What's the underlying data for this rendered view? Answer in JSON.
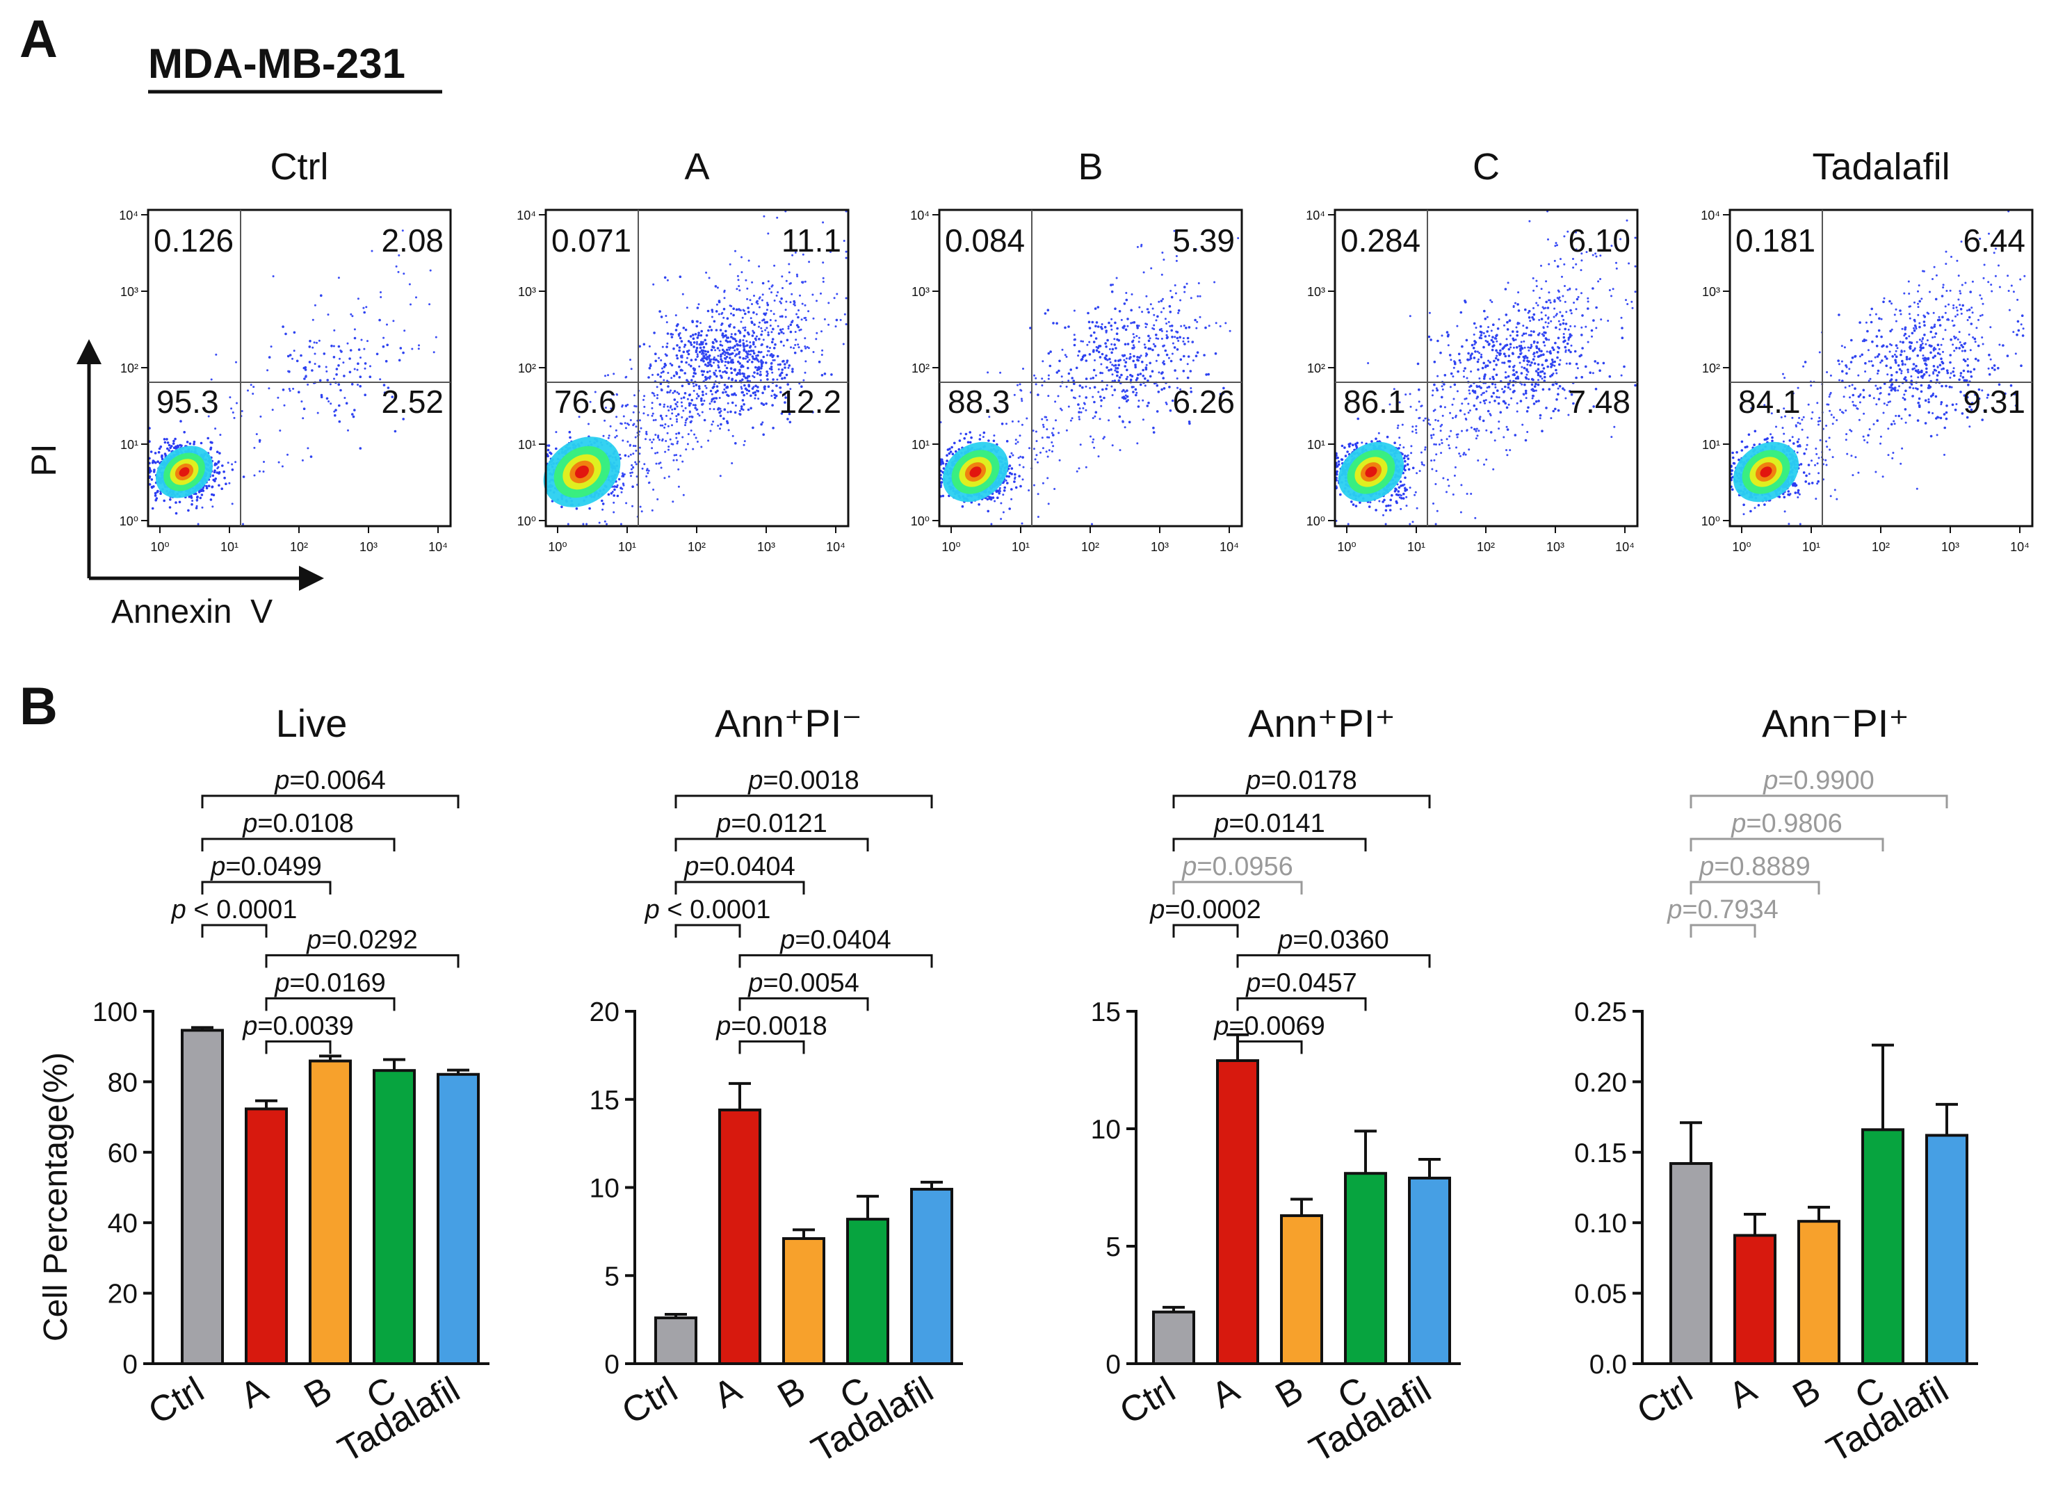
{
  "panel_a": {
    "label": "A",
    "cell_line": "MDA-MB-231",
    "ylabel": "PI",
    "xlabel": "Annexin  V",
    "tick_labels": [
      "10⁰",
      "10¹",
      "10²",
      "10³",
      "10⁴"
    ],
    "plots": [
      {
        "title": "Ctrl",
        "quadrants": {
          "upper_left": "0.126",
          "upper_right": "2.08",
          "lower_left": "95.3",
          "lower_right": "2.52"
        }
      },
      {
        "title": "A",
        "quadrants": {
          "upper_left": "0.071",
          "upper_right": "11.1",
          "lower_left": "76.6",
          "lower_right": "12.2"
        }
      },
      {
        "title": "B",
        "quadrants": {
          "upper_left": "0.084",
          "upper_right": "5.39",
          "lower_left": "88.3",
          "lower_right": "6.26"
        }
      },
      {
        "title": "C",
        "quadrants": {
          "upper_left": "0.284",
          "upper_right": "6.10",
          "lower_left": "86.1",
          "lower_right": "7.48"
        }
      },
      {
        "title": "Tadalafil",
        "quadrants": {
          "upper_left": "0.181",
          "upper_right": "6.44",
          "lower_left": "84.1",
          "lower_right": "9.31"
        }
      }
    ]
  },
  "panel_b": {
    "label": "B",
    "ylabel": "Cell Percentage(%)"
  },
  "colors": {
    "Ctrl": "#a3a3a8",
    "A": "#d7190e",
    "B": "#f7a12c",
    "C": "#07a43f",
    "Tadalafil": "#469fe4",
    "significant": "#111111",
    "not_significant": "#9a9a9a"
  },
  "chart_data": [
    {
      "type": "bar",
      "title": "Live",
      "categories": [
        "Ctrl",
        "A",
        "B",
        "C",
        "Tadalafil"
      ],
      "values": [
        94.6,
        72.3,
        85.9,
        83.2,
        82.1
      ],
      "errors": [
        0.8,
        2.3,
        1.4,
        3.1,
        1.2
      ],
      "ylim": [
        0,
        100
      ],
      "yticks": [
        "0",
        "20",
        "40",
        "60",
        "80",
        "100"
      ],
      "comparisons": [
        {
          "from": 0,
          "to": 4,
          "p": "=0.0064",
          "significant": true
        },
        {
          "from": 0,
          "to": 3,
          "p": "=0.0108",
          "significant": true
        },
        {
          "from": 0,
          "to": 2,
          "p": "=0.0499",
          "significant": true
        },
        {
          "from": 0,
          "to": 1,
          "p": " < 0.0001",
          "significant": true
        },
        {
          "from": 1,
          "to": 4,
          "p": "=0.0292",
          "significant": true
        },
        {
          "from": 1,
          "to": 3,
          "p": "=0.0169",
          "significant": true
        },
        {
          "from": 1,
          "to": 2,
          "p": "=0.0039",
          "significant": true
        }
      ]
    },
    {
      "type": "bar",
      "title": "Ann⁺PI⁻",
      "categories": [
        "Ctrl",
        "A",
        "B",
        "C",
        "Tadalafil"
      ],
      "values": [
        2.6,
        14.4,
        7.1,
        8.2,
        9.9
      ],
      "errors": [
        0.2,
        1.5,
        0.5,
        1.3,
        0.4
      ],
      "ylim": [
        0,
        20
      ],
      "yticks": [
        "0",
        "5",
        "10",
        "15",
        "20"
      ],
      "comparisons": [
        {
          "from": 0,
          "to": 4,
          "p": "=0.0018",
          "significant": true
        },
        {
          "from": 0,
          "to": 3,
          "p": "=0.0121",
          "significant": true
        },
        {
          "from": 0,
          "to": 2,
          "p": "=0.0404",
          "significant": true
        },
        {
          "from": 0,
          "to": 1,
          "p": " < 0.0001",
          "significant": true
        },
        {
          "from": 1,
          "to": 4,
          "p": "=0.0404",
          "significant": true
        },
        {
          "from": 1,
          "to": 3,
          "p": "=0.0054",
          "significant": true
        },
        {
          "from": 1,
          "to": 2,
          "p": "=0.0018",
          "significant": true
        }
      ]
    },
    {
      "type": "bar",
      "title": "Ann⁺PI⁺",
      "categories": [
        "Ctrl",
        "A",
        "B",
        "C",
        "Tadalafil"
      ],
      "values": [
        2.2,
        12.9,
        6.3,
        8.1,
        7.9
      ],
      "errors": [
        0.2,
        1.1,
        0.7,
        1.8,
        0.8
      ],
      "ylim": [
        0,
        15
      ],
      "yticks": [
        "0",
        "5",
        "10",
        "15"
      ],
      "comparisons": [
        {
          "from": 0,
          "to": 4,
          "p": "=0.0178",
          "significant": true
        },
        {
          "from": 0,
          "to": 3,
          "p": "=0.0141",
          "significant": true
        },
        {
          "from": 0,
          "to": 2,
          "p": "=0.0956",
          "significant": false
        },
        {
          "from": 0,
          "to": 1,
          "p": "=0.0002",
          "significant": true
        },
        {
          "from": 1,
          "to": 4,
          "p": "=0.0360",
          "significant": true
        },
        {
          "from": 1,
          "to": 3,
          "p": "=0.0457",
          "significant": true
        },
        {
          "from": 1,
          "to": 2,
          "p": "=0.0069",
          "significant": true
        }
      ]
    },
    {
      "type": "bar",
      "title": "Ann⁻PI⁺",
      "categories": [
        "Ctrl",
        "A",
        "B",
        "C",
        "Tadalafil"
      ],
      "values": [
        0.142,
        0.091,
        0.101,
        0.166,
        0.162
      ],
      "errors": [
        0.029,
        0.015,
        0.01,
        0.06,
        0.022
      ],
      "ylim": [
        0,
        0.25
      ],
      "yticks": [
        "0.0",
        "0.05",
        "0.10",
        "0.15",
        "0.20",
        "0.25"
      ],
      "comparisons": [
        {
          "from": 0,
          "to": 4,
          "p": "=0.9900",
          "significant": false
        },
        {
          "from": 0,
          "to": 3,
          "p": "=0.9806",
          "significant": false
        },
        {
          "from": 0,
          "to": 2,
          "p": "=0.8889",
          "significant": false
        },
        {
          "from": 0,
          "to": 1,
          "p": "=0.7934",
          "significant": false
        }
      ]
    }
  ]
}
